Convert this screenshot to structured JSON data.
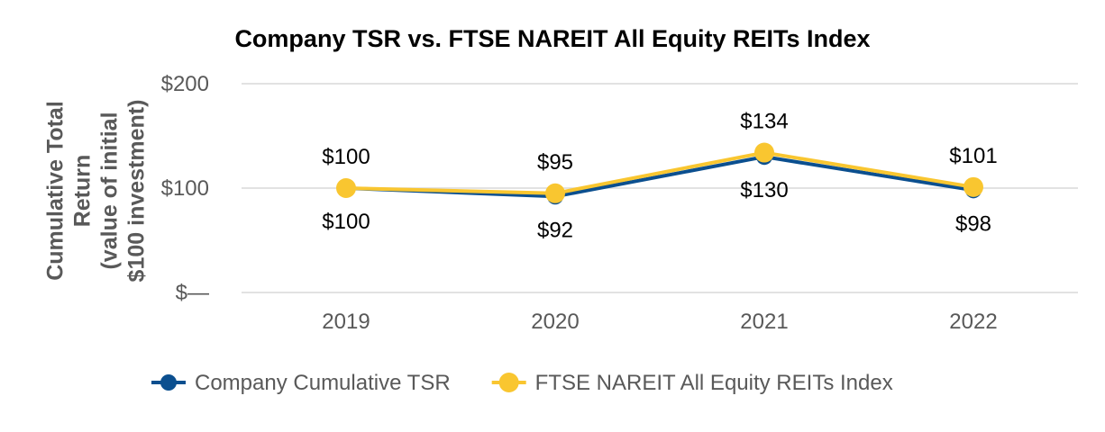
{
  "chart_data": {
    "type": "line",
    "title": "Company TSR vs. FTSE NAREIT All Equity REITs Index",
    "ylabel_lines": [
      "Cumulative Total",
      "Return",
      "(value of initial",
      "$100 investment)"
    ],
    "categories": [
      "2019",
      "2020",
      "2021",
      "2022"
    ],
    "ylim": [
      0,
      200
    ],
    "yticks": [
      {
        "value": 0,
        "label": "$—"
      },
      {
        "value": 100,
        "label": "$100"
      },
      {
        "value": 200,
        "label": "$200"
      }
    ],
    "grid": true,
    "legend_position": "bottom",
    "series": [
      {
        "name": "Company Cumulative TSR",
        "color": "#0B4F8F",
        "values": [
          100,
          92,
          130,
          98
        ],
        "labels": [
          "$100",
          "$92",
          "$130",
          "$98"
        ],
        "label_position": "below"
      },
      {
        "name": "FTSE NAREIT All Equity REITs Index",
        "color": "#F9C630",
        "values": [
          100,
          95,
          134,
          101
        ],
        "labels": [
          "$100",
          "$95",
          "$134",
          "$101"
        ],
        "label_position": "above"
      }
    ]
  }
}
